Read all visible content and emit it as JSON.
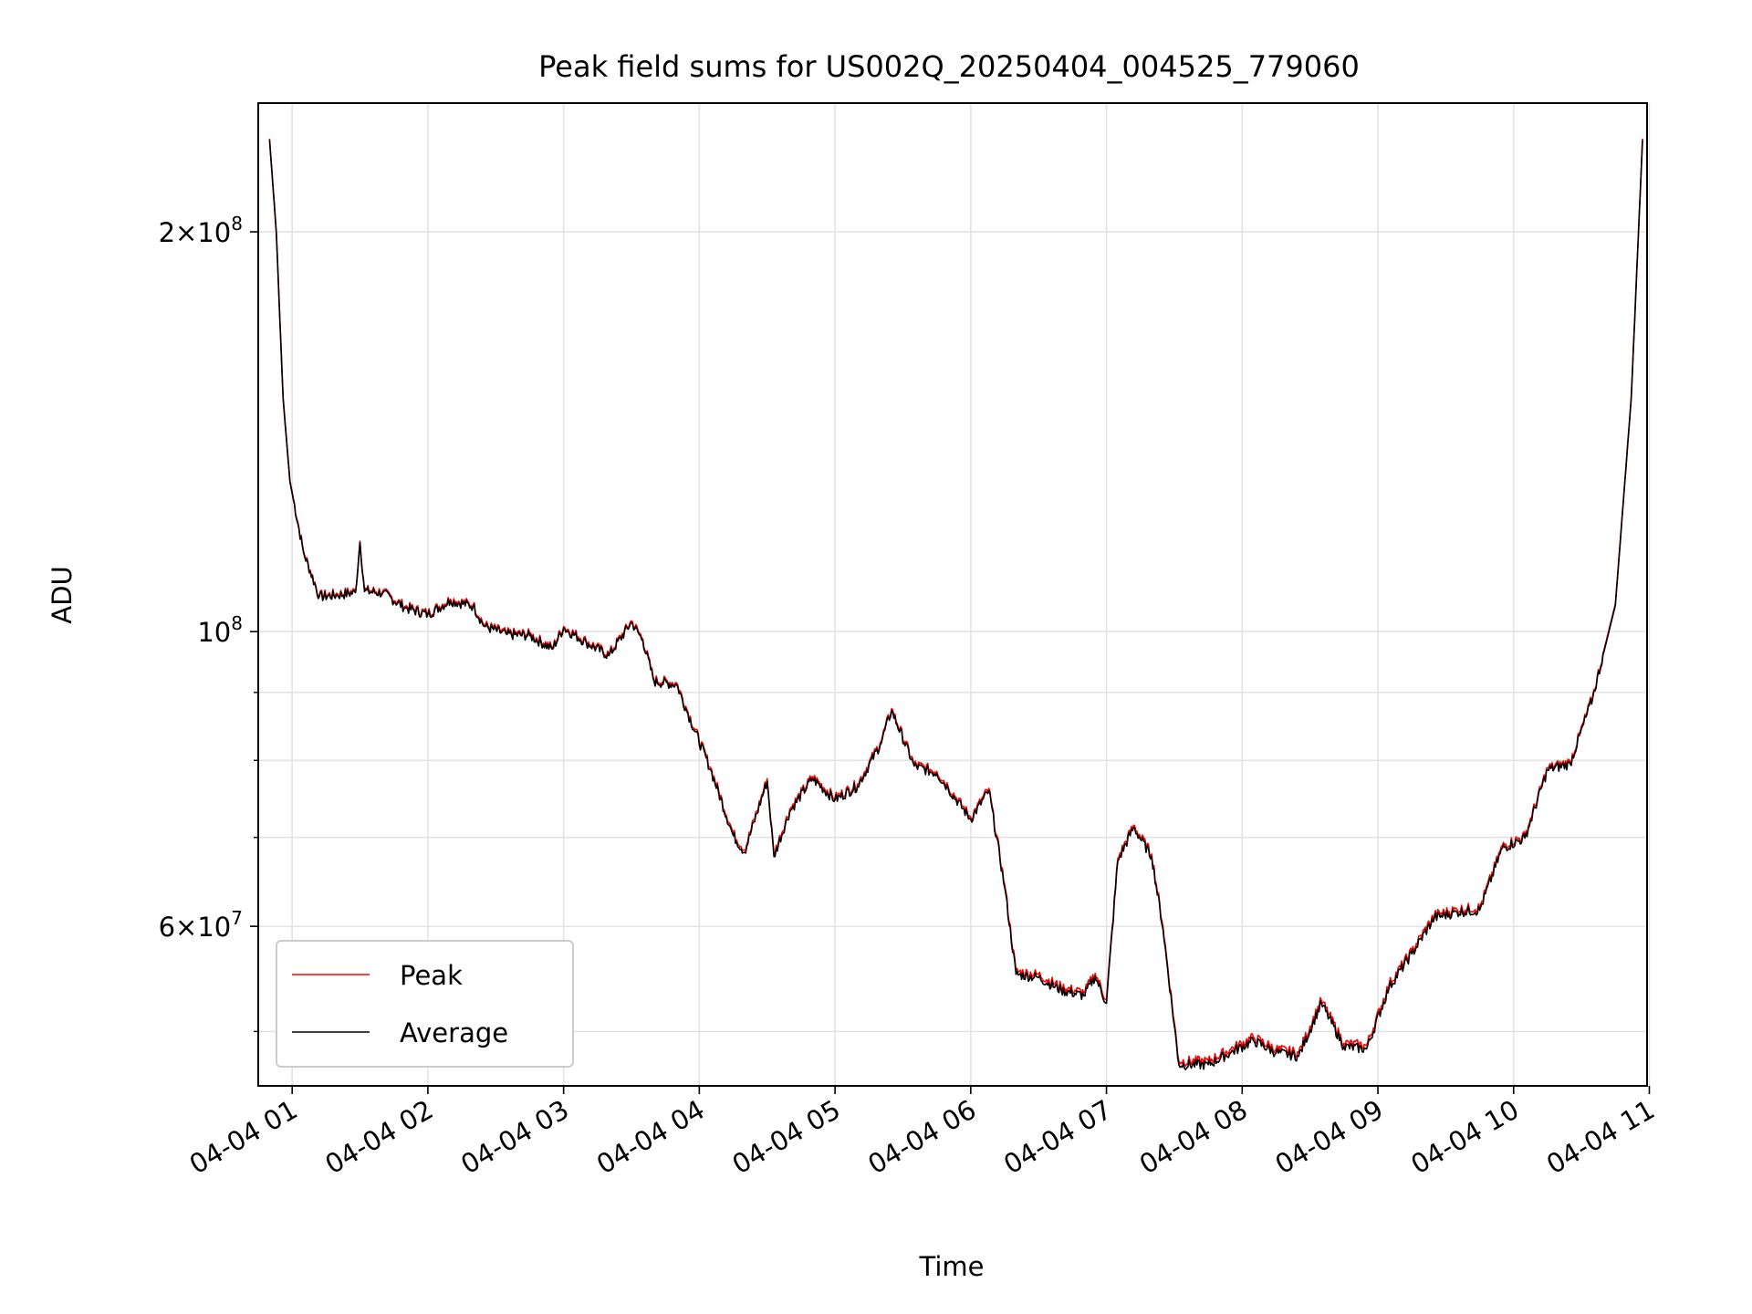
{
  "chart_data": {
    "type": "line",
    "title": "Peak field sums for US002Q_20250404_004525_779060",
    "xlabel": "Time",
    "ylabel": "ADU",
    "y_scale": "log",
    "ylim": [
      45500000,
      250000000
    ],
    "xlim": [
      "2025-04-04 00:45",
      "2025-04-04 10:59"
    ],
    "x_ticks": [
      "04-04 01",
      "04-04 02",
      "04-04 03",
      "04-04 04",
      "04-04 05",
      "04-04 06",
      "04-04 07",
      "04-04 08",
      "04-04 09",
      "04-04 10",
      "04-04 11"
    ],
    "y_ticks": [
      {
        "value": 200000000,
        "mantissa": "2",
        "exponent": "8"
      },
      {
        "value": 100000000,
        "mantissa": "",
        "exponent": "8"
      },
      {
        "value": 60000000,
        "mantissa": "6",
        "exponent": "7"
      }
    ],
    "y_minor_ticks": [
      50000000,
      70000000,
      80000000,
      90000000
    ],
    "grid": true,
    "legend_position": "lower-left",
    "series": [
      {
        "name": "Peak",
        "color": "#ff0000",
        "data": [
          [
            "2025-04-04 00:50",
            235000000
          ],
          [
            "2025-04-04 00:53",
            200000000
          ],
          [
            "2025-04-04 00:56",
            150000000
          ],
          [
            "2025-04-04 00:59",
            130000000
          ],
          [
            "2025-04-04 01:05",
            115000000
          ],
          [
            "2025-04-04 01:12",
            106500000
          ],
          [
            "2025-04-04 01:20",
            106800000
          ],
          [
            "2025-04-04 01:28",
            107300000
          ],
          [
            "2025-04-04 01:30",
            117000000
          ],
          [
            "2025-04-04 01:32",
            107500000
          ],
          [
            "2025-04-04 01:40",
            107200000
          ],
          [
            "2025-04-04 01:50",
            104500000
          ],
          [
            "2025-04-04 02:00",
            103300000
          ],
          [
            "2025-04-04 02:10",
            105800000
          ],
          [
            "2025-04-04 02:20",
            104800000
          ],
          [
            "2025-04-04 02:25",
            101200000
          ],
          [
            "2025-04-04 02:35",
            99800000
          ],
          [
            "2025-04-04 02:45",
            99600000
          ],
          [
            "2025-04-04 02:55",
            97300000
          ],
          [
            "2025-04-04 03:00",
            100900000
          ],
          [
            "2025-04-04 03:10",
            98400000
          ],
          [
            "2025-04-04 03:20",
            96200000
          ],
          [
            "2025-04-04 03:30",
            101900000
          ],
          [
            "2025-04-04 03:35",
            98800000
          ],
          [
            "2025-04-04 03:40",
            92000000
          ],
          [
            "2025-04-04 03:50",
            91500000
          ],
          [
            "2025-04-04 03:55",
            87000000
          ],
          [
            "2025-04-04 04:05",
            79000000
          ],
          [
            "2025-04-04 04:15",
            70500000
          ],
          [
            "2025-04-04 04:20",
            68500000
          ],
          [
            "2025-04-04 04:30",
            77500000
          ],
          [
            "2025-04-04 04:33",
            68000000
          ],
          [
            "2025-04-04 04:40",
            73500000
          ],
          [
            "2025-04-04 04:50",
            77800000
          ],
          [
            "2025-04-04 05:00",
            75000000
          ],
          [
            "2025-04-04 05:10",
            76800000
          ],
          [
            "2025-04-04 05:20",
            82500000
          ],
          [
            "2025-04-04 05:25",
            87500000
          ],
          [
            "2025-04-04 05:35",
            79500000
          ],
          [
            "2025-04-04 05:45",
            78500000
          ],
          [
            "2025-04-04 05:50",
            76500000
          ],
          [
            "2025-04-04 06:00",
            72500000
          ],
          [
            "2025-04-04 06:08",
            76200000
          ],
          [
            "2025-04-04 06:15",
            64500000
          ],
          [
            "2025-04-04 06:20",
            55500000
          ],
          [
            "2025-04-04 06:30",
            55200000
          ],
          [
            "2025-04-04 06:40",
            54000000
          ],
          [
            "2025-04-04 06:50",
            53500000
          ],
          [
            "2025-04-04 06:55",
            55300000
          ],
          [
            "2025-04-04 07:00",
            52800000
          ],
          [
            "2025-04-04 07:05",
            67500000
          ],
          [
            "2025-04-04 07:12",
            71500000
          ],
          [
            "2025-04-04 07:20",
            68000000
          ],
          [
            "2025-04-04 07:25",
            60000000
          ],
          [
            "2025-04-04 07:32",
            47500000
          ],
          [
            "2025-04-04 07:45",
            47500000
          ],
          [
            "2025-04-04 07:55",
            48500000
          ],
          [
            "2025-04-04 08:05",
            49500000
          ],
          [
            "2025-04-04 08:15",
            48500000
          ],
          [
            "2025-04-04 08:25",
            48200000
          ],
          [
            "2025-04-04 08:35",
            52800000
          ],
          [
            "2025-04-04 08:45",
            49000000
          ],
          [
            "2025-04-04 08:55",
            48800000
          ],
          [
            "2025-04-04 09:05",
            54300000
          ],
          [
            "2025-04-04 09:15",
            57500000
          ],
          [
            "2025-04-04 09:25",
            61200000
          ],
          [
            "2025-04-04 09:35",
            61800000
          ],
          [
            "2025-04-04 09:45",
            62000000
          ],
          [
            "2025-04-04 09:55",
            69000000
          ],
          [
            "2025-04-04 10:05",
            70200000
          ],
          [
            "2025-04-04 10:15",
            79000000
          ],
          [
            "2025-04-04 10:25",
            79800000
          ],
          [
            "2025-04-04 10:35",
            89500000
          ],
          [
            "2025-04-04 10:45",
            105000000
          ],
          [
            "2025-04-04 10:52",
            150000000
          ],
          [
            "2025-04-04 10:57",
            235000000
          ]
        ]
      },
      {
        "name": "Average",
        "color": "#000000",
        "data": [
          [
            "2025-04-04 00:50",
            234500000
          ],
          [
            "2025-04-04 00:53",
            199600000
          ],
          [
            "2025-04-04 00:56",
            149700000
          ],
          [
            "2025-04-04 00:59",
            129700000
          ],
          [
            "2025-04-04 01:05",
            114700000
          ],
          [
            "2025-04-04 01:12",
            106200000
          ],
          [
            "2025-04-04 01:20",
            106500000
          ],
          [
            "2025-04-04 01:28",
            107000000
          ],
          [
            "2025-04-04 01:30",
            116700000
          ],
          [
            "2025-04-04 01:32",
            107200000
          ],
          [
            "2025-04-04 01:40",
            106900000
          ],
          [
            "2025-04-04 01:50",
            104200000
          ],
          [
            "2025-04-04 02:00",
            103000000
          ],
          [
            "2025-04-04 02:10",
            105500000
          ],
          [
            "2025-04-04 02:20",
            104500000
          ],
          [
            "2025-04-04 02:25",
            100900000
          ],
          [
            "2025-04-04 02:35",
            99500000
          ],
          [
            "2025-04-04 02:45",
            99300000
          ],
          [
            "2025-04-04 02:55",
            97000000
          ],
          [
            "2025-04-04 03:00",
            100600000
          ],
          [
            "2025-04-04 03:10",
            98100000
          ],
          [
            "2025-04-04 03:20",
            95900000
          ],
          [
            "2025-04-04 03:30",
            101600000
          ],
          [
            "2025-04-04 03:35",
            98500000
          ],
          [
            "2025-04-04 03:40",
            91700000
          ],
          [
            "2025-04-04 03:50",
            91200000
          ],
          [
            "2025-04-04 03:55",
            86700000
          ],
          [
            "2025-04-04 04:05",
            78700000
          ],
          [
            "2025-04-04 04:15",
            70200000
          ],
          [
            "2025-04-04 04:20",
            68200000
          ],
          [
            "2025-04-04 04:30",
            77200000
          ],
          [
            "2025-04-04 04:33",
            67700000
          ],
          [
            "2025-04-04 04:40",
            73200000
          ],
          [
            "2025-04-04 04:50",
            77500000
          ],
          [
            "2025-04-04 05:00",
            74700000
          ],
          [
            "2025-04-04 05:10",
            76500000
          ],
          [
            "2025-04-04 05:20",
            82200000
          ],
          [
            "2025-04-04 05:25",
            87200000
          ],
          [
            "2025-04-04 05:35",
            79200000
          ],
          [
            "2025-04-04 05:45",
            78200000
          ],
          [
            "2025-04-04 05:50",
            76200000
          ],
          [
            "2025-04-04 06:00",
            72200000
          ],
          [
            "2025-04-04 06:08",
            75900000
          ],
          [
            "2025-04-04 06:15",
            64200000
          ],
          [
            "2025-04-04 06:20",
            55200000
          ],
          [
            "2025-04-04 06:30",
            54900000
          ],
          [
            "2025-04-04 06:40",
            53700000
          ],
          [
            "2025-04-04 06:50",
            53200000
          ],
          [
            "2025-04-04 06:55",
            55000000
          ],
          [
            "2025-04-04 07:00",
            52500000
          ],
          [
            "2025-04-04 07:05",
            67200000
          ],
          [
            "2025-04-04 07:12",
            71200000
          ],
          [
            "2025-04-04 07:20",
            67700000
          ],
          [
            "2025-04-04 07:25",
            59700000
          ],
          [
            "2025-04-04 07:32",
            47200000
          ],
          [
            "2025-04-04 07:45",
            47200000
          ],
          [
            "2025-04-04 07:55",
            48200000
          ],
          [
            "2025-04-04 08:05",
            49200000
          ],
          [
            "2025-04-04 08:15",
            48200000
          ],
          [
            "2025-04-04 08:25",
            47900000
          ],
          [
            "2025-04-04 08:35",
            52500000
          ],
          [
            "2025-04-04 08:45",
            48700000
          ],
          [
            "2025-04-04 08:55",
            48500000
          ],
          [
            "2025-04-04 09:05",
            54000000
          ],
          [
            "2025-04-04 09:15",
            57200000
          ],
          [
            "2025-04-04 09:25",
            60900000
          ],
          [
            "2025-04-04 09:35",
            61500000
          ],
          [
            "2025-04-04 09:45",
            61700000
          ],
          [
            "2025-04-04 09:55",
            68700000
          ],
          [
            "2025-04-04 10:05",
            69900000
          ],
          [
            "2025-04-04 10:15",
            78700000
          ],
          [
            "2025-04-04 10:25",
            79500000
          ],
          [
            "2025-04-04 10:35",
            89200000
          ],
          [
            "2025-04-04 10:45",
            104700000
          ],
          [
            "2025-04-04 10:52",
            149700000
          ],
          [
            "2025-04-04 10:57",
            234500000
          ]
        ]
      }
    ]
  }
}
